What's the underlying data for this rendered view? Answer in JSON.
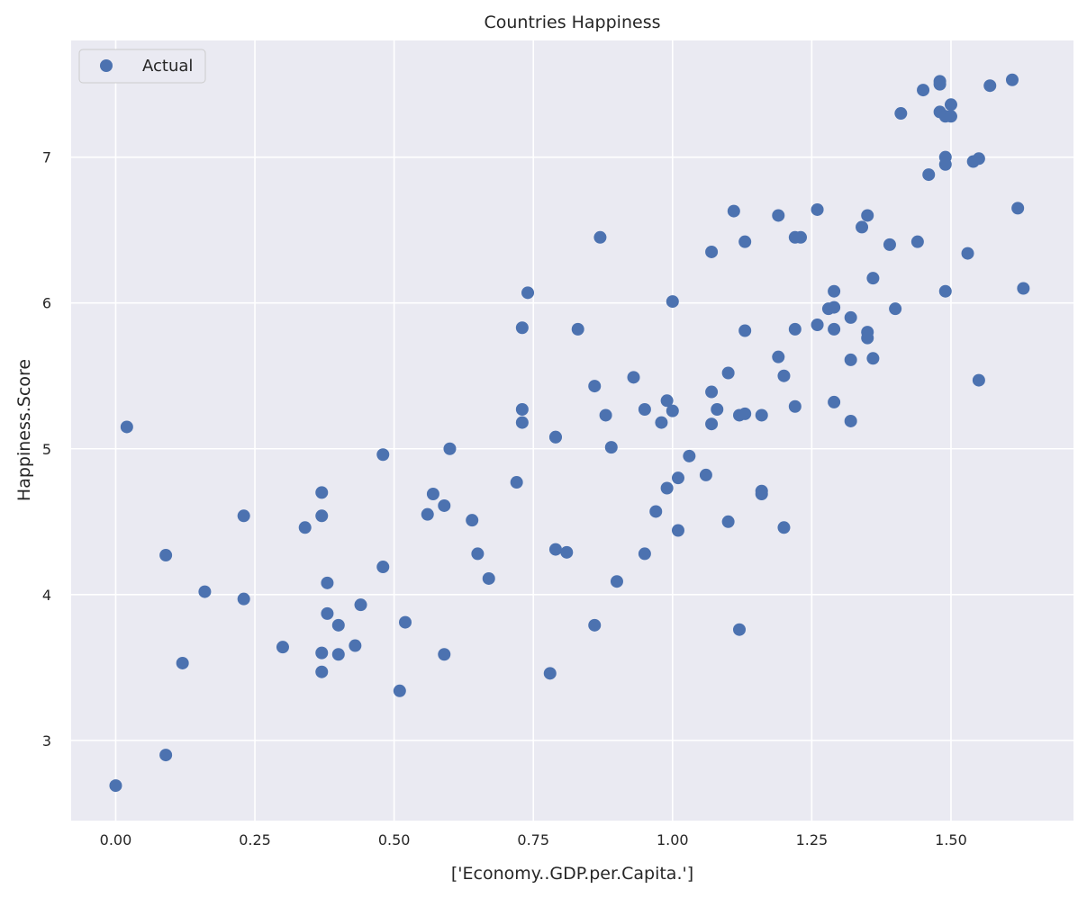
{
  "chart_data": {
    "type": "scatter",
    "title": "Countries Happiness",
    "xlabel": "['Economy..GDP.per.Capita.']",
    "ylabel": "Happiness.Score",
    "xlim": [
      -0.08,
      1.72
    ],
    "ylim": [
      2.45,
      7.8
    ],
    "xticks": [
      0.0,
      0.25,
      0.5,
      0.75,
      1.0,
      1.25,
      1.5
    ],
    "xtick_labels": [
      "0.00",
      "0.25",
      "0.50",
      "0.75",
      "1.00",
      "1.25",
      "1.50"
    ],
    "yticks": [
      3,
      4,
      5,
      6,
      7
    ],
    "ytick_labels": [
      "3",
      "4",
      "5",
      "6",
      "7"
    ],
    "grid": true,
    "legend": {
      "position": "top-left",
      "entries": [
        "Actual"
      ]
    },
    "colors": {
      "background": "#eaeaf2",
      "grid": "#ffffff",
      "points": "#4c72b0"
    },
    "series": [
      {
        "name": "Actual",
        "x": [
          0.0,
          0.09,
          0.02,
          0.09,
          0.12,
          0.16,
          0.23,
          0.23,
          0.3,
          0.34,
          0.37,
          0.37,
          0.37,
          0.37,
          0.38,
          0.38,
          0.4,
          0.4,
          0.43,
          0.44,
          0.48,
          0.48,
          0.51,
          0.52,
          0.56,
          0.57,
          0.59,
          0.59,
          0.6,
          0.64,
          0.65,
          0.67,
          0.72,
          0.73,
          0.73,
          0.73,
          0.74,
          0.78,
          0.79,
          0.79,
          0.79,
          0.81,
          0.83,
          0.86,
          0.86,
          0.87,
          0.88,
          0.89,
          0.9,
          0.93,
          0.95,
          0.95,
          0.97,
          0.98,
          0.99,
          0.99,
          1.0,
          1.0,
          1.01,
          1.01,
          1.03,
          1.06,
          1.07,
          1.07,
          1.07,
          1.08,
          1.1,
          1.1,
          1.11,
          1.12,
          1.12,
          1.13,
          1.13,
          1.13,
          1.16,
          1.16,
          1.16,
          1.19,
          1.19,
          1.2,
          1.2,
          1.22,
          1.22,
          1.22,
          1.23,
          1.26,
          1.26,
          1.28,
          1.29,
          1.29,
          1.29,
          1.29,
          1.32,
          1.32,
          1.32,
          1.34,
          1.35,
          1.35,
          1.35,
          1.36,
          1.36,
          1.39,
          1.4,
          1.41,
          1.44,
          1.45,
          1.46,
          1.48,
          1.48,
          1.48,
          1.49,
          1.49,
          1.49,
          1.49,
          1.5,
          1.5,
          1.53,
          1.54,
          1.55,
          1.55,
          1.57,
          1.61,
          1.62,
          1.63
        ],
        "y": [
          2.69,
          2.9,
          5.15,
          4.27,
          3.53,
          4.02,
          4.54,
          3.97,
          3.64,
          4.46,
          4.7,
          4.54,
          3.6,
          3.47,
          3.87,
          4.08,
          3.79,
          3.59,
          3.65,
          3.93,
          4.19,
          4.96,
          3.34,
          3.81,
          4.55,
          4.69,
          4.61,
          3.59,
          5.0,
          4.51,
          4.28,
          4.11,
          4.77,
          5.27,
          5.83,
          5.18,
          6.07,
          3.46,
          5.08,
          5.08,
          4.31,
          4.29,
          5.82,
          5.43,
          3.79,
          6.45,
          5.23,
          5.01,
          4.09,
          5.49,
          5.27,
          4.28,
          4.57,
          5.18,
          5.33,
          4.73,
          5.26,
          6.01,
          4.8,
          4.44,
          4.95,
          4.82,
          5.17,
          5.39,
          6.35,
          5.27,
          5.52,
          4.5,
          6.63,
          5.23,
          3.76,
          5.24,
          6.42,
          5.81,
          5.23,
          4.69,
          4.71,
          6.6,
          5.63,
          5.5,
          4.46,
          6.45,
          5.82,
          5.29,
          6.45,
          6.64,
          5.85,
          5.96,
          5.32,
          5.82,
          6.08,
          5.97,
          5.9,
          5.61,
          5.19,
          6.52,
          5.8,
          5.76,
          6.6,
          6.17,
          5.62,
          6.4,
          5.96,
          7.3,
          6.42,
          7.46,
          6.88,
          7.5,
          7.52,
          7.31,
          7.28,
          7.0,
          6.95,
          6.08,
          7.28,
          7.36,
          6.34,
          6.97,
          6.99,
          5.47,
          7.49,
          7.53,
          6.65,
          6.1
        ]
      }
    ]
  }
}
